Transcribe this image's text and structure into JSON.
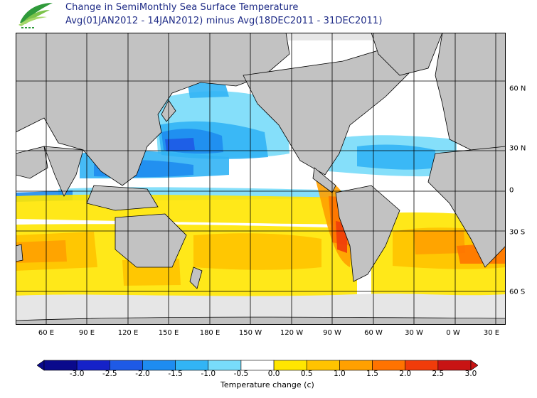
{
  "title": {
    "line1": "Change in SemiMonthly Sea Surface Temperature",
    "line2": "Avg(01JAN2012 - 14JAN2012) minus Avg(18DEC2011 - 31DEC2011)"
  },
  "map": {
    "longitude_labels": [
      "60 E",
      "90 E",
      "120 E",
      "150 E",
      "180 E",
      "150 W",
      "120 W",
      "90 W",
      "60 W",
      "30 W",
      "0 W",
      "30 E"
    ],
    "latitude_labels": [
      "60 N",
      "30 N",
      "0",
      "30 S",
      "60 S"
    ],
    "land_color": "#c2c2c2",
    "ice_color": "#e6e6e6"
  },
  "colorbar": {
    "ticks": [
      "-3.0",
      "-2.5",
      "-2.0",
      "-1.5",
      "-1.0",
      "-0.5",
      "0.0",
      "0.5",
      "1.0",
      "1.5",
      "2.0",
      "2.5",
      "3.0"
    ],
    "colors": [
      "#0a0a8c",
      "#1522c8",
      "#1e5ae6",
      "#1e8cf0",
      "#32b4f5",
      "#78dcfa",
      "#ffffff",
      "#ffe600",
      "#ffc300",
      "#ffa000",
      "#ff7300",
      "#f03c0a",
      "#c81414"
    ],
    "title": "Temperature change  (c)"
  }
}
